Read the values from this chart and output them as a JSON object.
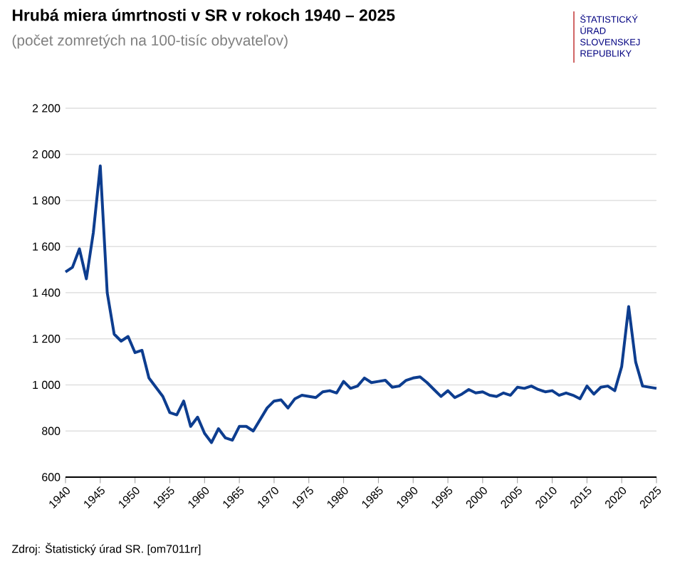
{
  "chart_data": {
    "type": "line",
    "title": "Hrubá miera úmrtnosti v SR v rokoch 1940 – 2025",
    "subtitle": "(počet zomretých na 100-tisíc obyvateľov)",
    "x": [
      1940,
      1941,
      1942,
      1943,
      1944,
      1945,
      1946,
      1947,
      1948,
      1949,
      1950,
      1951,
      1952,
      1953,
      1954,
      1955,
      1956,
      1957,
      1958,
      1959,
      1960,
      1961,
      1962,
      1963,
      1964,
      1965,
      1966,
      1967,
      1968,
      1969,
      1970,
      1971,
      1972,
      1973,
      1974,
      1975,
      1976,
      1977,
      1978,
      1979,
      1980,
      1981,
      1982,
      1983,
      1984,
      1985,
      1986,
      1987,
      1988,
      1989,
      1990,
      1991,
      1992,
      1993,
      1994,
      1995,
      1996,
      1997,
      1998,
      1999,
      2000,
      2001,
      2002,
      2003,
      2004,
      2005,
      2006,
      2007,
      2008,
      2009,
      2010,
      2011,
      2012,
      2013,
      2014,
      2015,
      2016,
      2017,
      2018,
      2019,
      2020,
      2021,
      2022,
      2023,
      2024,
      2025
    ],
    "series": [
      {
        "color": "#0d3d8f",
        "values": [
          1490,
          1510,
          1590,
          1460,
          1660,
          1950,
          1400,
          1220,
          1190,
          1210,
          1140,
          1150,
          1030,
          990,
          950,
          880,
          870,
          930,
          820,
          860,
          790,
          750,
          810,
          770,
          760,
          820,
          820,
          800,
          850,
          900,
          930,
          935,
          900,
          940,
          955,
          950,
          945,
          970,
          975,
          965,
          1015,
          985,
          995,
          1030,
          1010,
          1015,
          1020,
          990,
          995,
          1020,
          1030,
          1035,
          1010,
          980,
          950,
          975,
          945,
          960,
          980,
          965,
          970,
          955,
          950,
          965,
          955,
          990,
          985,
          995,
          980,
          970,
          975,
          955,
          965,
          955,
          940,
          995,
          960,
          990,
          995,
          975,
          1080,
          1340,
          1100,
          995,
          990,
          985
        ]
      }
    ],
    "xlim": [
      1940,
      2025
    ],
    "xticks": [
      1940,
      1945,
      1950,
      1955,
      1960,
      1965,
      1970,
      1975,
      1980,
      1985,
      1990,
      1995,
      2000,
      2005,
      2010,
      2015,
      2020,
      2025
    ],
    "ylim": [
      600,
      2200
    ],
    "yticks": [
      600,
      800,
      {
        "value": 1000,
        "label": "1 000"
      },
      {
        "value": 1200,
        "label": "1 200"
      },
      {
        "value": 1400,
        "label": "1 400"
      },
      {
        "value": 1600,
        "label": "1 600"
      },
      {
        "value": 1800,
        "label": "1 800"
      },
      {
        "value": 2000,
        "label": "2 000"
      },
      {
        "value": 2200,
        "label": "2 200"
      }
    ],
    "grid": "y",
    "marker": "none",
    "line_style": "solid",
    "annotations": [
      "Zdroj: Štatistický úrad SR. [om7011rr]",
      "ŠTATISTICKÝ ÚRAD SLOVENSKEJ REPUBLIKY"
    ]
  }
}
